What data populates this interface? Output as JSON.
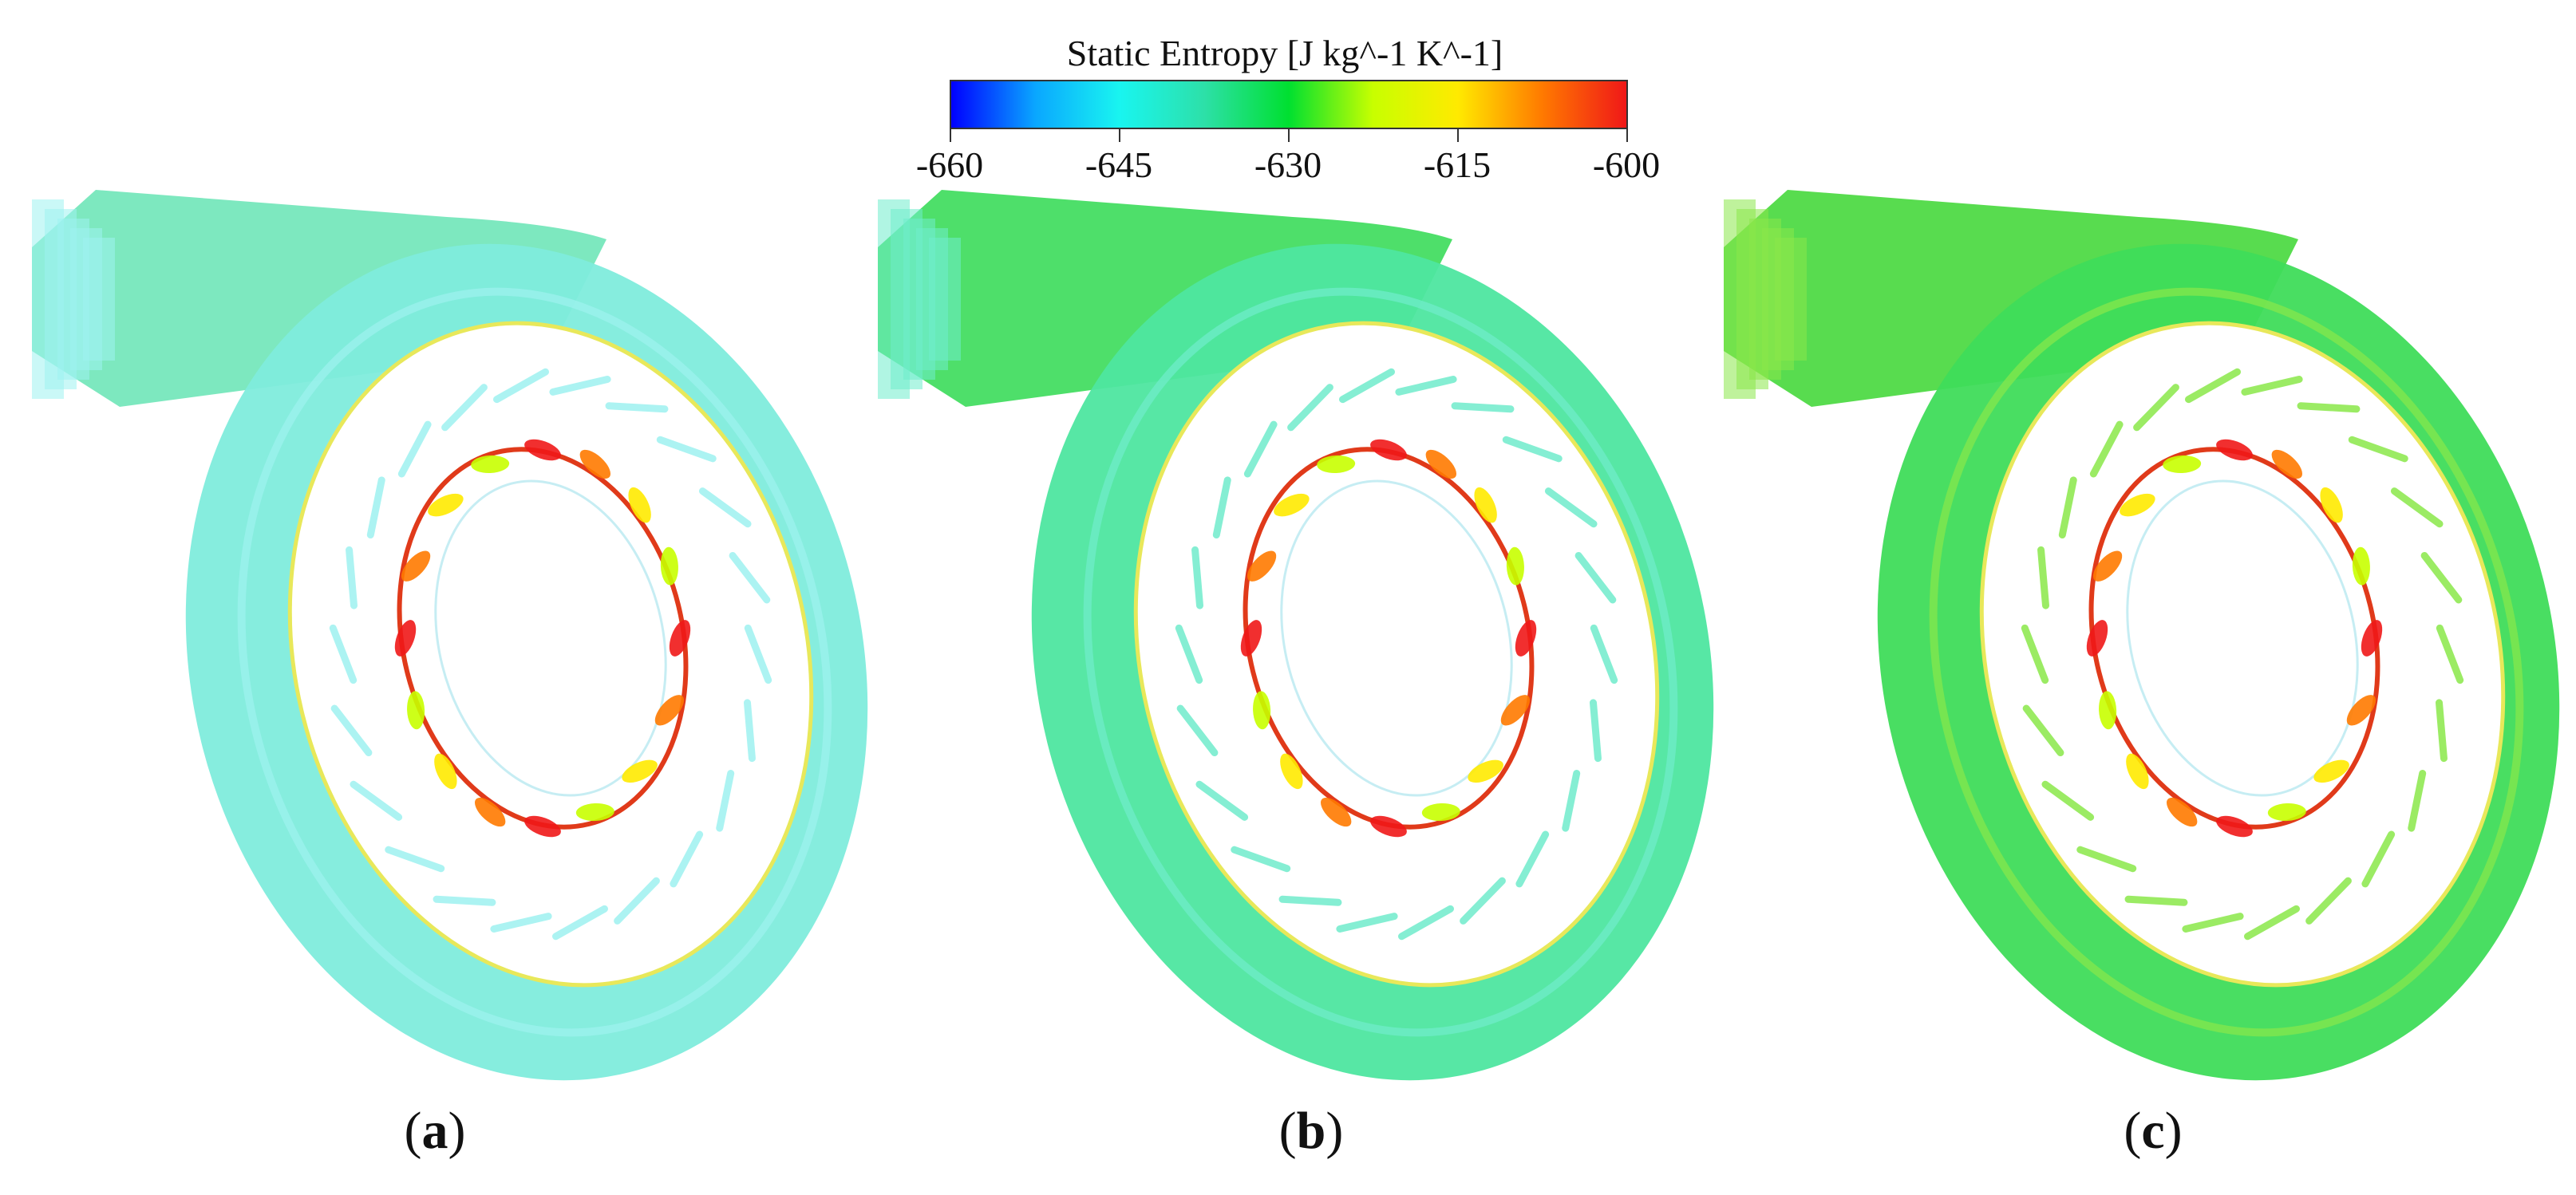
{
  "legend": {
    "title": "Static Entropy [J kg^-1 K^-1]",
    "min": -660,
    "max": -600,
    "ticks": [
      "-660",
      "-645",
      "-630",
      "-615",
      "-600"
    ],
    "colormap": [
      "#0000ff",
      "#0aa7ff",
      "#19f5f0",
      "#2de0a8",
      "#00e030",
      "#c8ff00",
      "#ffea00",
      "#ff7a00",
      "#f01818"
    ]
  },
  "panels": [
    {
      "id": "a",
      "label_open": "(",
      "label_letter": "a",
      "label_close": ")",
      "volute_color": "#7fecdc",
      "inlet_color": "#6fe6b8",
      "edge_color": "#9ef2f0"
    },
    {
      "id": "b",
      "label_open": "(",
      "label_letter": "b",
      "label_close": ")",
      "volute_color": "#4ee6a0",
      "inlet_color": "#3bdc5a",
      "edge_color": "#70eccc"
    },
    {
      "id": "c",
      "label_open": "(",
      "label_letter": "c",
      "label_close": ")",
      "volute_color": "#3fdc5a",
      "inlet_color": "#46d83c",
      "edge_color": "#8ae84a"
    }
  ]
}
